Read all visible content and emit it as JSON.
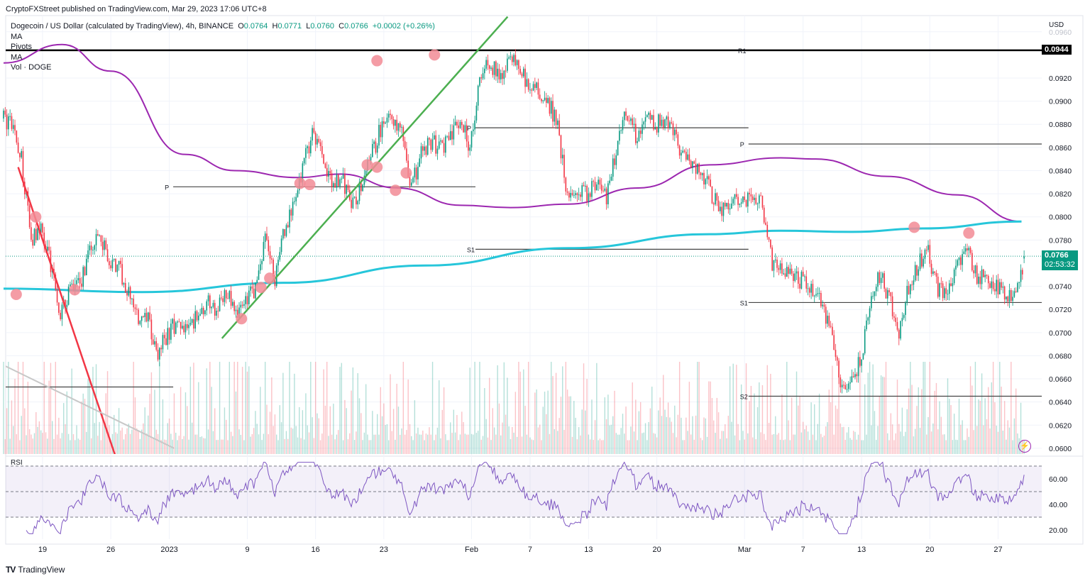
{
  "header": {
    "published": "CryptoFXStreet published on TradingView.com, Mar 29, 2023 17:06 UTC+8",
    "symbol": "Dogecoin / US Dollar (calculated by TradingView), 4h, BINANCE",
    "o_label": "O",
    "o": "0.0764",
    "h_label": "H",
    "h": "0.0771",
    "l_label": "L",
    "l": "0.0760",
    "c_label": "C",
    "c": "0.0766",
    "change": "+0.0002 (+0.26%)"
  },
  "indicators": [
    "MA",
    "Pivots",
    "MA",
    "Vol · DOGE"
  ],
  "rsi_label": "RSI",
  "axis": {
    "currency": "USD",
    "price_ticks": [
      "0.0960",
      "0.0920",
      "0.0900",
      "0.0880",
      "0.0860",
      "0.0840",
      "0.0820",
      "0.0800",
      "0.0780",
      "0.0740",
      "0.0720",
      "0.0700",
      "0.0680",
      "0.0660",
      "0.0640",
      "0.0620",
      "0.0600"
    ],
    "rsi_ticks": [
      "60.00",
      "40.00",
      "20.00"
    ],
    "x_ticks": [
      {
        "label": "19",
        "d": 4
      },
      {
        "label": "26",
        "d": 11
      },
      {
        "label": "2023",
        "d": 17
      },
      {
        "label": "9",
        "d": 25
      },
      {
        "label": "16",
        "d": 32
      },
      {
        "label": "23",
        "d": 39
      },
      {
        "label": "Feb",
        "d": 48
      },
      {
        "label": "7",
        "d": 54
      },
      {
        "label": "13",
        "d": 60
      },
      {
        "label": "20",
        "d": 67
      },
      {
        "label": "Mar",
        "d": 76
      },
      {
        "label": "7",
        "d": 82
      },
      {
        "label": "13",
        "d": 88
      },
      {
        "label": "20",
        "d": 95
      },
      {
        "label": "27",
        "d": 102
      }
    ]
  },
  "badges": {
    "r1_price": "0.0944",
    "last_price": "0.0766",
    "countdown": "02:53:32"
  },
  "footer": {
    "brand": "TradingView"
  },
  "colors": {
    "up": "#089981",
    "down": "#f23645",
    "ma_slow": "#9c27b0",
    "ma_fast": "#26c6da",
    "rsi": "#7e57c2",
    "marker": "#f28b95"
  },
  "chart_data": {
    "type": "candlestick",
    "title": "Dogecoin / US Dollar, 4h, BINANCE",
    "ylabel": "USD",
    "ylim": [
      0.06,
      0.096
    ],
    "x_start": "Dec 15, 2022",
    "daily_close": [
      0.088,
      0.085,
      0.078,
      0.079,
      0.076,
      0.0715,
      0.074,
      0.074,
      0.0775,
      0.078,
      0.0765,
      0.0755,
      0.0735,
      0.071,
      0.071,
      0.068,
      0.07,
      0.071,
      0.07,
      0.0715,
      0.0725,
      0.072,
      0.0735,
      0.0715,
      0.0725,
      0.074,
      0.078,
      0.0745,
      0.079,
      0.081,
      0.085,
      0.0875,
      0.0845,
      0.083,
      0.083,
      0.081,
      0.083,
      0.0855,
      0.088,
      0.089,
      0.087,
      0.0825,
      0.0855,
      0.0865,
      0.086,
      0.087,
      0.0885,
      0.086,
      0.092,
      0.0935,
      0.092,
      0.0935,
      0.093,
      0.0915,
      0.091,
      0.09,
      0.088,
      0.0815,
      0.082,
      0.082,
      0.083,
      0.0815,
      0.086,
      0.0895,
      0.087,
      0.0885,
      0.088,
      0.0885,
      0.087,
      0.085,
      0.0845,
      0.0835,
      0.0815,
      0.0805,
      0.0815,
      0.0815,
      0.082,
      0.081,
      0.076,
      0.0755,
      0.075,
      0.0745,
      0.074,
      0.0725,
      0.07,
      0.0655,
      0.066,
      0.0675,
      0.072,
      0.075,
      0.073,
      0.07,
      0.074,
      0.076,
      0.077,
      0.0735,
      0.074,
      0.076,
      0.077,
      0.075,
      0.0745,
      0.074,
      0.0735,
      0.073,
      0.0764
    ],
    "last_candle": {
      "open": 0.0764,
      "high": 0.0771,
      "low": 0.076,
      "close": 0.0766
    },
    "ma_slow": [
      [
        0,
        0.0933
      ],
      [
        6,
        0.0949
      ],
      [
        11,
        0.0926
      ],
      [
        18.6,
        0.0854
      ],
      [
        23.7,
        0.084
      ],
      [
        30.2,
        0.0834
      ],
      [
        34.6,
        0.0837
      ],
      [
        40.4,
        0.0825
      ],
      [
        46.9,
        0.081
      ],
      [
        52,
        0.0808
      ],
      [
        57.9,
        0.0811
      ],
      [
        65.1,
        0.0825
      ],
      [
        72.4,
        0.0845
      ],
      [
        79.7,
        0.0851
      ],
      [
        83.3,
        0.085
      ],
      [
        90.6,
        0.0835
      ],
      [
        97.9,
        0.0819
      ],
      [
        104.4,
        0.0796
      ]
    ],
    "ma_fast": [
      [
        0,
        0.0738
      ],
      [
        14.2,
        0.0735
      ],
      [
        28.7,
        0.0743
      ],
      [
        43.3,
        0.0758
      ],
      [
        57.9,
        0.0773
      ],
      [
        72.4,
        0.0785
      ],
      [
        79.7,
        0.0788
      ],
      [
        87,
        0.0787
      ],
      [
        94.3,
        0.079
      ],
      [
        104.4,
        0.0796
      ]
    ],
    "pivots": [
      {
        "label": "R1",
        "price": 0.0944,
        "from": 0,
        "to": 106.5,
        "bold": true
      },
      {
        "label": "P",
        "price": 0.0826,
        "from": 17.4,
        "to": 48.4
      },
      {
        "label": "",
        "price": 0.0653,
        "from": 0,
        "to": 17.4
      },
      {
        "label": "P",
        "price": 0.0877,
        "from": 48.4,
        "to": 76.4
      },
      {
        "label": "S1",
        "price": 0.0772,
        "from": 48.4,
        "to": 76.4
      },
      {
        "label": "P",
        "price": 0.0863,
        "from": 76.4,
        "to": 106.5
      },
      {
        "label": "S1",
        "price": 0.0726,
        "from": 76.4,
        "to": 106.5
      },
      {
        "label": "S2",
        "price": 0.0645,
        "from": 76.4,
        "to": 106.5
      }
    ],
    "trendlines": [
      {
        "name": "downtrend",
        "color": "#f23645",
        "from": [
          1.5,
          0.0843
        ],
        "to": [
          11.6,
          0.059
        ]
      },
      {
        "name": "support-grey",
        "color": "#c8c8c8",
        "from": [
          0.2,
          0.0671
        ],
        "to": [
          17.5,
          0.06
        ]
      },
      {
        "name": "uptrend",
        "color": "#4caf50",
        "from": [
          22.4,
          0.0695
        ],
        "to": [
          51.7,
          0.0973
        ]
      }
    ],
    "markers": [
      [
        1.3,
        0.0733
      ],
      [
        3.3,
        0.08
      ],
      [
        7.3,
        0.0737
      ],
      [
        24.4,
        0.0712
      ],
      [
        26.4,
        0.0739
      ],
      [
        27.3,
        0.0747
      ],
      [
        30.4,
        0.0829
      ],
      [
        31.4,
        0.0828
      ],
      [
        37.3,
        0.0845
      ],
      [
        38.3,
        0.0843
      ],
      [
        38.3,
        0.0935
      ],
      [
        40.2,
        0.0823
      ],
      [
        41.3,
        0.0838
      ],
      [
        44.2,
        0.094
      ],
      [
        93.4,
        0.0791
      ],
      [
        99,
        0.0786
      ]
    ],
    "rsi": {
      "levels": [
        70,
        50,
        30
      ],
      "ylim": [
        15,
        75
      ]
    }
  }
}
